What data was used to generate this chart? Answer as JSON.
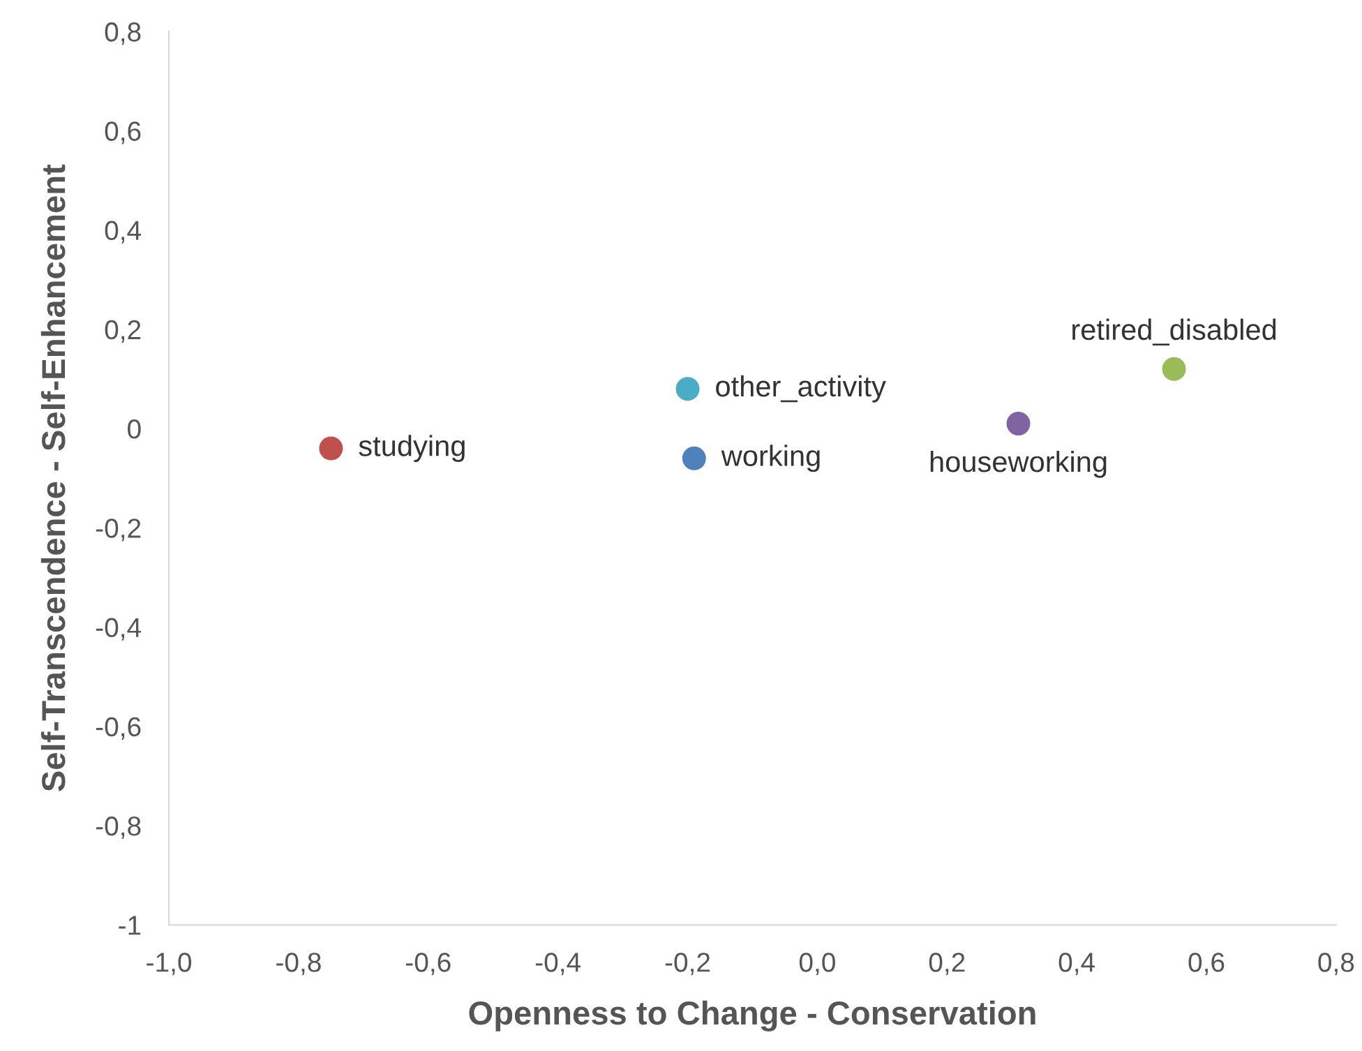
{
  "chart_data": {
    "type": "scatter",
    "xlabel": "Openness to Change - Conservation",
    "ylabel": "Self-Transcendence - Self-Enhancement",
    "xlim": [
      -1.0,
      0.8
    ],
    "ylim": [
      -1,
      0.8
    ],
    "xticks": [
      {
        "value": -1.0,
        "label": "-1,0"
      },
      {
        "value": -0.8,
        "label": "-0,8"
      },
      {
        "value": -0.6,
        "label": "-0,6"
      },
      {
        "value": -0.4,
        "label": "-0,4"
      },
      {
        "value": -0.2,
        "label": "-0,2"
      },
      {
        "value": 0.0,
        "label": "0,0"
      },
      {
        "value": 0.2,
        "label": "0,2"
      },
      {
        "value": 0.4,
        "label": "0,4"
      },
      {
        "value": 0.6,
        "label": "0,6"
      },
      {
        "value": 0.8,
        "label": "0,8"
      }
    ],
    "yticks": [
      {
        "value": -1,
        "label": "-1"
      },
      {
        "value": -0.8,
        "label": "-0,8"
      },
      {
        "value": -0.6,
        "label": "-0,6"
      },
      {
        "value": -0.4,
        "label": "-0,4"
      },
      {
        "value": -0.2,
        "label": "-0,2"
      },
      {
        "value": 0,
        "label": "0"
      },
      {
        "value": 0.2,
        "label": "0,2"
      },
      {
        "value": 0.4,
        "label": "0,4"
      },
      {
        "value": 0.6,
        "label": "0,6"
      },
      {
        "value": 0.8,
        "label": "0,8"
      }
    ],
    "grid": false,
    "legend": false,
    "marker": "circle",
    "series": [
      {
        "name": "studying",
        "color": "#c0504d",
        "x": [
          -0.75
        ],
        "values": [
          -0.04
        ]
      },
      {
        "name": "other_activity",
        "color": "#4bacc6",
        "x": [
          -0.2
        ],
        "values": [
          0.08
        ]
      },
      {
        "name": "working",
        "color": "#4f81bd",
        "x": [
          -0.19
        ],
        "values": [
          -0.06
        ]
      },
      {
        "name": "houseworking",
        "color": "#8064a2",
        "x": [
          0.31
        ],
        "values": [
          0.01
        ]
      },
      {
        "name": "retired_disabled",
        "color": "#9bbb59",
        "x": [
          0.55
        ],
        "values": [
          0.12
        ]
      }
    ]
  }
}
